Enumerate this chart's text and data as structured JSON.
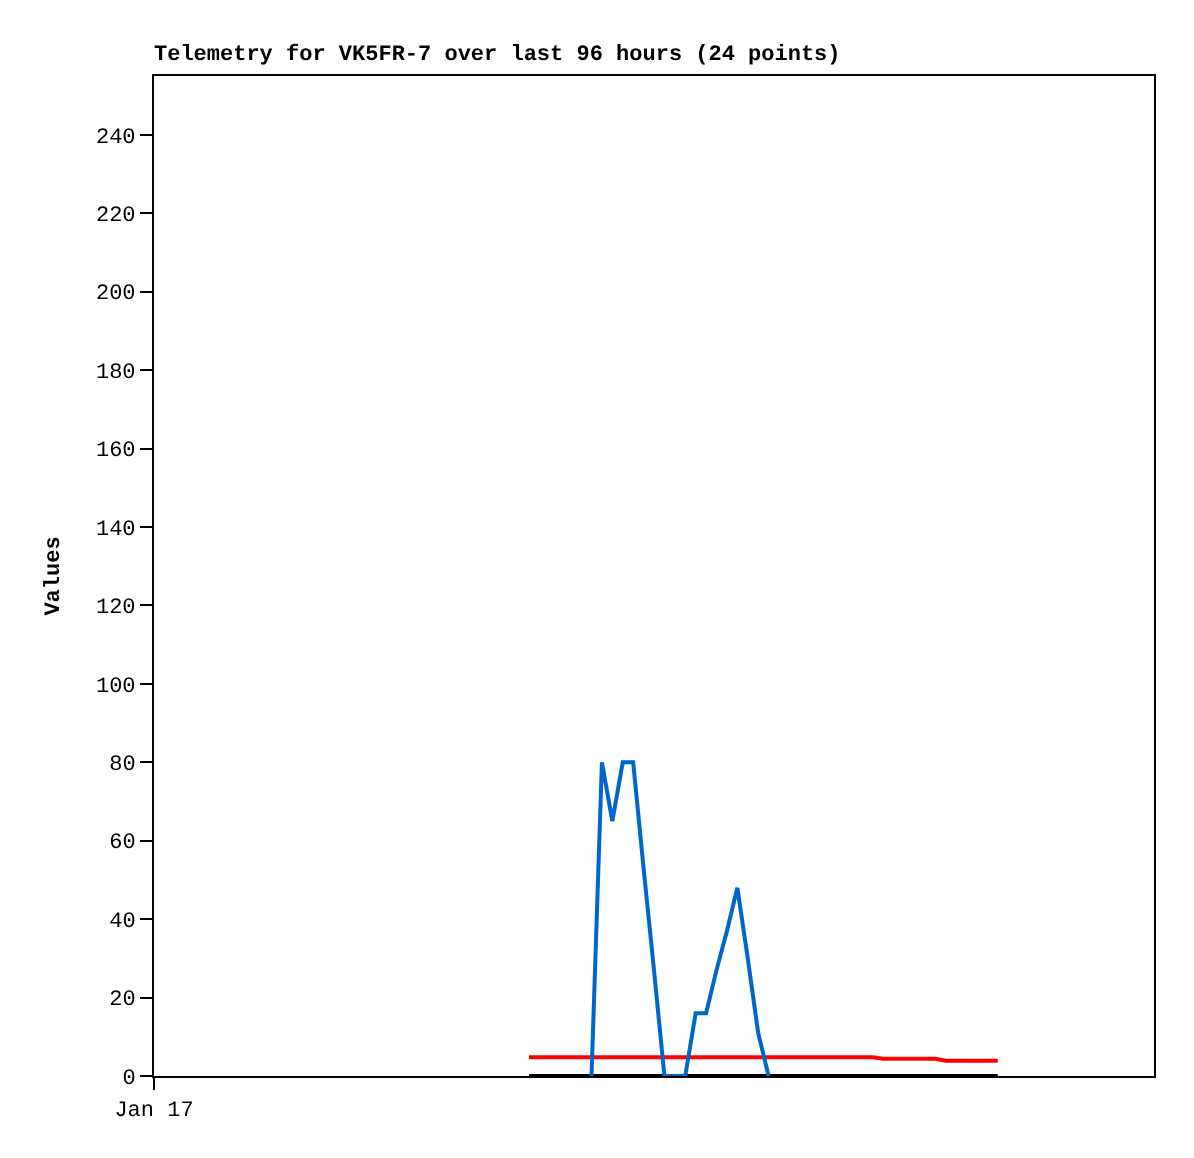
{
  "chart_data": {
    "type": "line",
    "title": "Telemetry for VK5FR-7 over last 96 hours (24 points)",
    "ylabel": "Values",
    "categories": [
      "Jan 17",
      null,
      null,
      null,
      null,
      null,
      null,
      null,
      null,
      null,
      null,
      null,
      null,
      null,
      null,
      null,
      null,
      null,
      null,
      null,
      null,
      null,
      null,
      null,
      null,
      null,
      null,
      null,
      null,
      null,
      null,
      null,
      null,
      null,
      null,
      null,
      null,
      null,
      null,
      null,
      null,
      null,
      null,
      null,
      null,
      null,
      null,
      null,
      null,
      null,
      null,
      null,
      null,
      null,
      null,
      null,
      null,
      null,
      null,
      null,
      null,
      null,
      null,
      null,
      null,
      null,
      null,
      null,
      null,
      null,
      null,
      null,
      null,
      null,
      null,
      null,
      null,
      null,
      null,
      null,
      null,
      null,
      null,
      null,
      null,
      null,
      null,
      null,
      null,
      null,
      null,
      null,
      null,
      null,
      null,
      null,
      null
    ],
    "ylim": [
      0,
      255
    ],
    "yticks": [
      0,
      20,
      40,
      60,
      80,
      100,
      120,
      140,
      160,
      180,
      200,
      220,
      240
    ],
    "marker": "none",
    "line_style": "solid",
    "series": [
      {
        "color": "#000000",
        "values": [
          null,
          null,
          null,
          null,
          null,
          null,
          null,
          null,
          null,
          null,
          null,
          null,
          null,
          null,
          null,
          null,
          null,
          null,
          null,
          null,
          null,
          null,
          null,
          null,
          null,
          null,
          null,
          null,
          null,
          null,
          null,
          null,
          null,
          null,
          null,
          null,
          0,
          0,
          0,
          0,
          0,
          0,
          0,
          0,
          0,
          0,
          0,
          0,
          0,
          0,
          0,
          0,
          0,
          0,
          0,
          0,
          0,
          0,
          0,
          0,
          0,
          0,
          0,
          0,
          0,
          0,
          0,
          0,
          0,
          0,
          0,
          0,
          0,
          0,
          0,
          0,
          0,
          0,
          0,
          0,
          0,
          0,
          null,
          null,
          null,
          null,
          null,
          null,
          null,
          null,
          null,
          null,
          null,
          null,
          null,
          null,
          null
        ]
      },
      {
        "color": "#ff0000",
        "values": [
          null,
          null,
          null,
          null,
          null,
          null,
          null,
          null,
          null,
          null,
          null,
          null,
          null,
          null,
          null,
          null,
          null,
          null,
          null,
          null,
          null,
          null,
          null,
          null,
          null,
          null,
          null,
          null,
          null,
          null,
          null,
          null,
          null,
          null,
          null,
          null,
          4.8,
          4.8,
          4.8,
          4.8,
          4.8,
          4.8,
          4.8,
          4.8,
          4.8,
          4.8,
          4.8,
          4.8,
          4.8,
          4.8,
          4.8,
          4.8,
          4.8,
          4.8,
          4.8,
          4.8,
          4.8,
          4.8,
          4.8,
          4.8,
          4.8,
          4.8,
          4.8,
          4.8,
          4.8,
          4.8,
          4.8,
          4.8,
          4.8,
          4.8,
          4.4,
          4.4,
          4.4,
          4.4,
          4.4,
          4.4,
          3.9,
          3.9,
          3.9,
          3.9,
          3.9,
          3.9,
          null,
          null,
          null,
          null,
          null,
          null,
          null,
          null,
          null,
          null,
          null,
          null,
          null,
          null,
          null
        ]
      },
      {
        "color": "#0066cc",
        "values": [
          null,
          null,
          null,
          null,
          null,
          null,
          null,
          null,
          null,
          null,
          null,
          null,
          null,
          null,
          null,
          null,
          null,
          null,
          null,
          null,
          null,
          null,
          null,
          null,
          null,
          null,
          null,
          null,
          null,
          null,
          null,
          null,
          null,
          null,
          null,
          null,
          null,
          null,
          null,
          null,
          null,
          null,
          0,
          80,
          65,
          80,
          80,
          53,
          27,
          0,
          0,
          0,
          16,
          16,
          27,
          37,
          48,
          30,
          11,
          0,
          null,
          null,
          null,
          null,
          null,
          null,
          null,
          null,
          null,
          null,
          null,
          null,
          null,
          null,
          null,
          null,
          null,
          null,
          null,
          null,
          null,
          null,
          null,
          null,
          null,
          null,
          null,
          null,
          null,
          null,
          null,
          null,
          null,
          null,
          null,
          null,
          null
        ]
      }
    ]
  }
}
